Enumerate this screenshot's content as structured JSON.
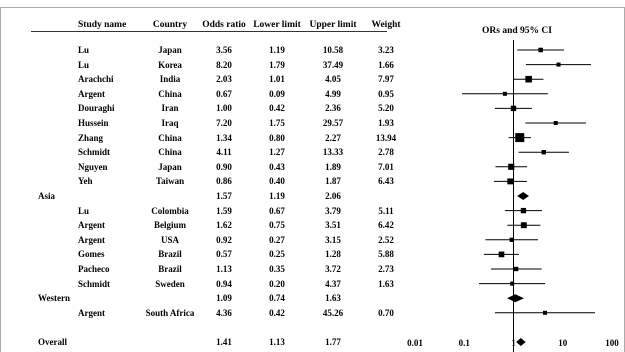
{
  "chart_data": {
    "type": "forest",
    "title": "ORs and 95% CI",
    "x_scale": "log",
    "xlim": [
      0.01,
      100
    ],
    "x_ticks": [
      "0.01",
      "0.1",
      "1",
      "10",
      "100"
    ],
    "reference_line": 1,
    "columns": [
      "Study name",
      "Country",
      "Odds ratio",
      "Lower limit",
      "Upper limit",
      "Weight"
    ],
    "rows": [
      {
        "kind": "study",
        "group": "",
        "study": "Lu",
        "country": "Japan",
        "or": "3.56",
        "lower": "1.19",
        "upper": "10.58",
        "weight": "3.23"
      },
      {
        "kind": "study",
        "group": "",
        "study": "Lu",
        "country": "Korea",
        "or": "8.20",
        "lower": "1.79",
        "upper": "37.49",
        "weight": "1.66"
      },
      {
        "kind": "study",
        "group": "",
        "study": "Arachchi",
        "country": "India",
        "or": "2.03",
        "lower": "1.01",
        "upper": "4.05",
        "weight": "7.97"
      },
      {
        "kind": "study",
        "group": "",
        "study": "Argent",
        "country": "China",
        "or": "0.67",
        "lower": "0.09",
        "upper": "4.99",
        "weight": "0.95"
      },
      {
        "kind": "study",
        "group": "",
        "study": "Douraghi",
        "country": "Iran",
        "or": "1.00",
        "lower": "0.42",
        "upper": "2.36",
        "weight": "5.20"
      },
      {
        "kind": "study",
        "group": "",
        "study": "Hussein",
        "country": "Iraq",
        "or": "7.20",
        "lower": "1.75",
        "upper": "29.57",
        "weight": "1.93"
      },
      {
        "kind": "study",
        "group": "",
        "study": "Zhang",
        "country": "China",
        "or": "1.34",
        "lower": "0.80",
        "upper": "2.27",
        "weight": "13.94"
      },
      {
        "kind": "study",
        "group": "",
        "study": "Schmidt",
        "country": "China",
        "or": "4.11",
        "lower": "1.27",
        "upper": "13.33",
        "weight": "2.78"
      },
      {
        "kind": "study",
        "group": "",
        "study": "Nguyen",
        "country": "Japan",
        "or": "0.90",
        "lower": "0.43",
        "upper": "1.89",
        "weight": "7.01"
      },
      {
        "kind": "study",
        "group": "",
        "study": "Yeh",
        "country": "Taiwan",
        "or": "0.86",
        "lower": "0.40",
        "upper": "1.87",
        "weight": "6.43"
      },
      {
        "kind": "summary",
        "group": "Asia",
        "study": "",
        "country": "",
        "or": "1.57",
        "lower": "1.19",
        "upper": "2.06",
        "weight": ""
      },
      {
        "kind": "study",
        "group": "",
        "study": "Lu",
        "country": "Colombia",
        "or": "1.59",
        "lower": "0.67",
        "upper": "3.79",
        "weight": "5.11"
      },
      {
        "kind": "study",
        "group": "",
        "study": "Argent",
        "country": "Belgium",
        "or": "1.62",
        "lower": "0.75",
        "upper": "3.51",
        "weight": "6.42"
      },
      {
        "kind": "study",
        "group": "",
        "study": "Argent",
        "country": "USA",
        "or": "0.92",
        "lower": "0.27",
        "upper": "3.15",
        "weight": "2.52"
      },
      {
        "kind": "study",
        "group": "",
        "study": "Gomes",
        "country": "Brazil",
        "or": "0.57",
        "lower": "0.25",
        "upper": "1.28",
        "weight": "5.88"
      },
      {
        "kind": "study",
        "group": "",
        "study": "Pacheco",
        "country": "Brazil",
        "or": "1.13",
        "lower": "0.35",
        "upper": "3.72",
        "weight": "2.73"
      },
      {
        "kind": "study",
        "group": "",
        "study": "Schmidt",
        "country": "Sweden",
        "or": "0.94",
        "lower": "0.20",
        "upper": "4.37",
        "weight": "1.63"
      },
      {
        "kind": "summary",
        "group": "Western",
        "study": "",
        "country": "",
        "or": "1.09",
        "lower": "0.74",
        "upper": "1.63",
        "weight": ""
      },
      {
        "kind": "study",
        "group": "",
        "study": "Argent",
        "country": "South Africa",
        "or": "4.36",
        "lower": "0.42",
        "upper": "45.26",
        "weight": "0.70"
      },
      {
        "kind": "spacer"
      },
      {
        "kind": "summary",
        "group": "Overall",
        "study": "",
        "country": "",
        "or": "1.41",
        "lower": "1.13",
        "upper": "1.77",
        "weight": ""
      }
    ]
  }
}
